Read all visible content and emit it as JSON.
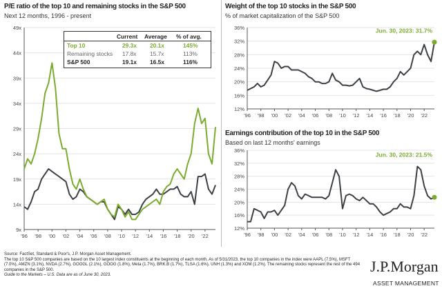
{
  "colors": {
    "top10": "#7aab2f",
    "remaining": "#3c3f44",
    "grid": "#e4e4e4"
  },
  "chart_data": [
    {
      "type": "line",
      "title": "P/E ratio of the top 10 and remaining stocks in the S&P 500",
      "subtitle": "Next 12 months, 1996 - present",
      "x_start": 1996,
      "x_step": 0.5,
      "ylim": [
        9,
        49
      ],
      "yticks": [
        "9x",
        "14x",
        "19x",
        "24x",
        "29x",
        "34x",
        "39x",
        "44x",
        "49x"
      ],
      "ytick_values": [
        9,
        14,
        19,
        24,
        29,
        34,
        39,
        44,
        49
      ],
      "xticks": [
        "'96",
        "'98",
        "'00",
        "'02",
        "'04",
        "'06",
        "'08",
        "'10",
        "'12",
        "'14",
        "'16",
        "'18",
        "'20",
        "'22"
      ],
      "series": [
        {
          "name": "Top 10",
          "values": [
            21,
            23,
            22,
            24,
            27,
            31,
            36,
            38,
            42,
            37,
            28,
            25,
            25,
            21,
            18,
            17,
            19,
            17,
            15.5,
            15,
            14.5,
            14,
            14.5,
            15,
            13,
            12,
            11.5,
            14,
            13,
            11.5,
            12.5,
            11,
            11,
            12,
            13,
            13.5,
            14,
            14.5,
            15,
            14,
            16.5,
            17.5,
            18,
            20,
            21,
            20,
            19,
            22,
            24,
            30,
            33,
            30,
            31,
            24,
            22,
            29.3
          ]
        },
        {
          "name": "Remaining stocks",
          "values": [
            13.5,
            13,
            14.5,
            16.5,
            17,
            19,
            20,
            21,
            20.5,
            20,
            19.5,
            19,
            18.5,
            16,
            15,
            15.5,
            17,
            16.5,
            15.5,
            15,
            14.5,
            14,
            14.5,
            14.5,
            13,
            12,
            11,
            13.5,
            13,
            12,
            13,
            12,
            12,
            12.5,
            14,
            15,
            15.5,
            16,
            17,
            16,
            16,
            16.5,
            17,
            17,
            17.5,
            16,
            15.5,
            15.5,
            16.5,
            14,
            19.5,
            19.5,
            20,
            17,
            16,
            17.8
          ]
        }
      ],
      "table": {
        "headers": [
          "Current",
          "Average",
          "% of avg."
        ],
        "rows": [
          {
            "label": "Top 10",
            "values": [
              "29.3x",
              "20.1x",
              "145%"
            ]
          },
          {
            "label": "Remaining stocks",
            "values": [
              "17.8x",
              "15.7x",
              "113%"
            ]
          },
          {
            "label": "S&P 500",
            "values": [
              "19.1x",
              "16.5x",
              "116%"
            ]
          }
        ]
      }
    },
    {
      "type": "line",
      "title": "Weight of the top 10 stocks in the S&P 500",
      "subtitle": "% of market capitalization of the S&P 500",
      "x_start": 1996,
      "x_step": 0.5,
      "ylim": [
        12,
        36
      ],
      "yticks": [
        "12%",
        "16%",
        "20%",
        "24%",
        "28%",
        "32%",
        "36%"
      ],
      "ytick_values": [
        12,
        16,
        20,
        24,
        28,
        32,
        36
      ],
      "xticks": [
        "'96",
        "'98",
        "'00",
        "'02",
        "'04",
        "'06",
        "'08",
        "'10",
        "'12",
        "'14",
        "'16",
        "'18",
        "'20",
        "'22"
      ],
      "annotation": "Jun. 30, 2023: 31.7%",
      "values": [
        17.5,
        18,
        18.5,
        19.5,
        18.5,
        19,
        20.5,
        22,
        26,
        25.5,
        24,
        24.5,
        24.5,
        23.5,
        23.5,
        23.5,
        23,
        22.5,
        21.5,
        21,
        20,
        20,
        19.5,
        19.5,
        20,
        22.5,
        20.5,
        20,
        19,
        19,
        18.8,
        19,
        20,
        21,
        18.5,
        18,
        17.8,
        17.5,
        17.2,
        17.5,
        17.8,
        17.8,
        18.5,
        20,
        21,
        23,
        22,
        23,
        24,
        28,
        29,
        28,
        31,
        28,
        26,
        31.7
      ]
    },
    {
      "type": "line",
      "title": "Earnings contribution of the top 10 in the S&P 500",
      "subtitle": "Based on last 12 months' earnings",
      "x_start": 1996,
      "x_step": 0.5,
      "ylim": [
        12,
        36
      ],
      "yticks": [
        "12%",
        "16%",
        "20%",
        "24%",
        "28%",
        "32%",
        "36%"
      ],
      "ytick_values": [
        12,
        16,
        20,
        24,
        28,
        32,
        36
      ],
      "xticks": [
        "'96",
        "'98",
        "'00",
        "'02",
        "'04",
        "'06",
        "'08",
        "'10",
        "'12",
        "'14",
        "'16",
        "'18",
        "'20",
        "'22"
      ],
      "annotation": "Jun. 30, 2023: 21.5%",
      "values": [
        14,
        14,
        18,
        17.5,
        17,
        15,
        17,
        17,
        17.5,
        16,
        17.5,
        19,
        24,
        26,
        25,
        22,
        21,
        22.5,
        22,
        21.5,
        21.5,
        21.5,
        21.5,
        21,
        22,
        26,
        30,
        28,
        18,
        22,
        22.5,
        22,
        21,
        20.5,
        21.5,
        20.5,
        19.5,
        19.5,
        18.5,
        17,
        16,
        16.5,
        17,
        18,
        18,
        19.5,
        18.5,
        18.5,
        18,
        22,
        31,
        30,
        25,
        22,
        21,
        21.5
      ]
    }
  ],
  "footer": {
    "source": "Source: FactSet, Standard & Poor's, J.P. Morgan Asset Management.",
    "note": "The top 10 S&P 500 companies are based on the 10 largest index constituents at the beginning of each month. As of 5/31/2023, the top 10 companies in the index were AAPL (7.5%), MSFT (7.0%), AMZN (3.1%), NVDA (2.7%), GOOGL (2.1%), GOOG (1.8%), Meta (1.7%), BRK.B (1.7%), TLSA (1.6%), UNH (1.3%) and XOM (1.2%). The remaining stocks represent the rest of the 494 companies in the S&P 500.",
    "guide": "Guide to the Markets – U.S. Data are as of June 30, 2023."
  },
  "logo": {
    "name": "J.P.Morgan",
    "sub": "ASSET MANAGEMENT"
  }
}
